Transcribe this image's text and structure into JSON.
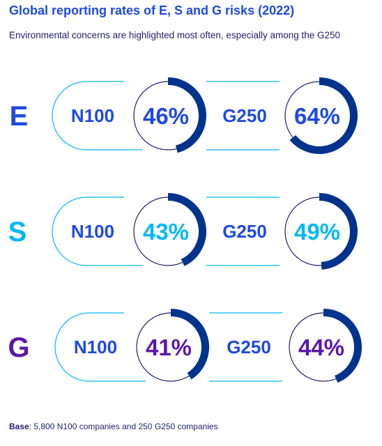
{
  "title": "Global reporting rates of E, S and G risks (2022)",
  "subtitle": "Environmental concerns are highlighted most often, especially among the G250",
  "footer": {
    "base_label": "Base",
    "base_text": ": 5,800 N100 companies and 250 G250 companies"
  },
  "colors": {
    "title": "#1e49e2",
    "arc": "#00338d",
    "ring": "#1e1e6e",
    "track_line": "#00b8f5",
    "E": "#1e49e2",
    "S": "#00b8f5",
    "G": "#5b17a8"
  },
  "chart_data": {
    "type": "donut-grid",
    "unit": "%",
    "groups": [
      "N100",
      "G250"
    ],
    "rows": [
      {
        "label": "E",
        "color": "#1e49e2",
        "values": [
          46,
          64
        ]
      },
      {
        "label": "S",
        "color": "#00b8f5",
        "values": [
          43,
          49
        ]
      },
      {
        "label": "G",
        "color": "#5b17a8",
        "values": [
          41,
          44
        ]
      }
    ]
  }
}
